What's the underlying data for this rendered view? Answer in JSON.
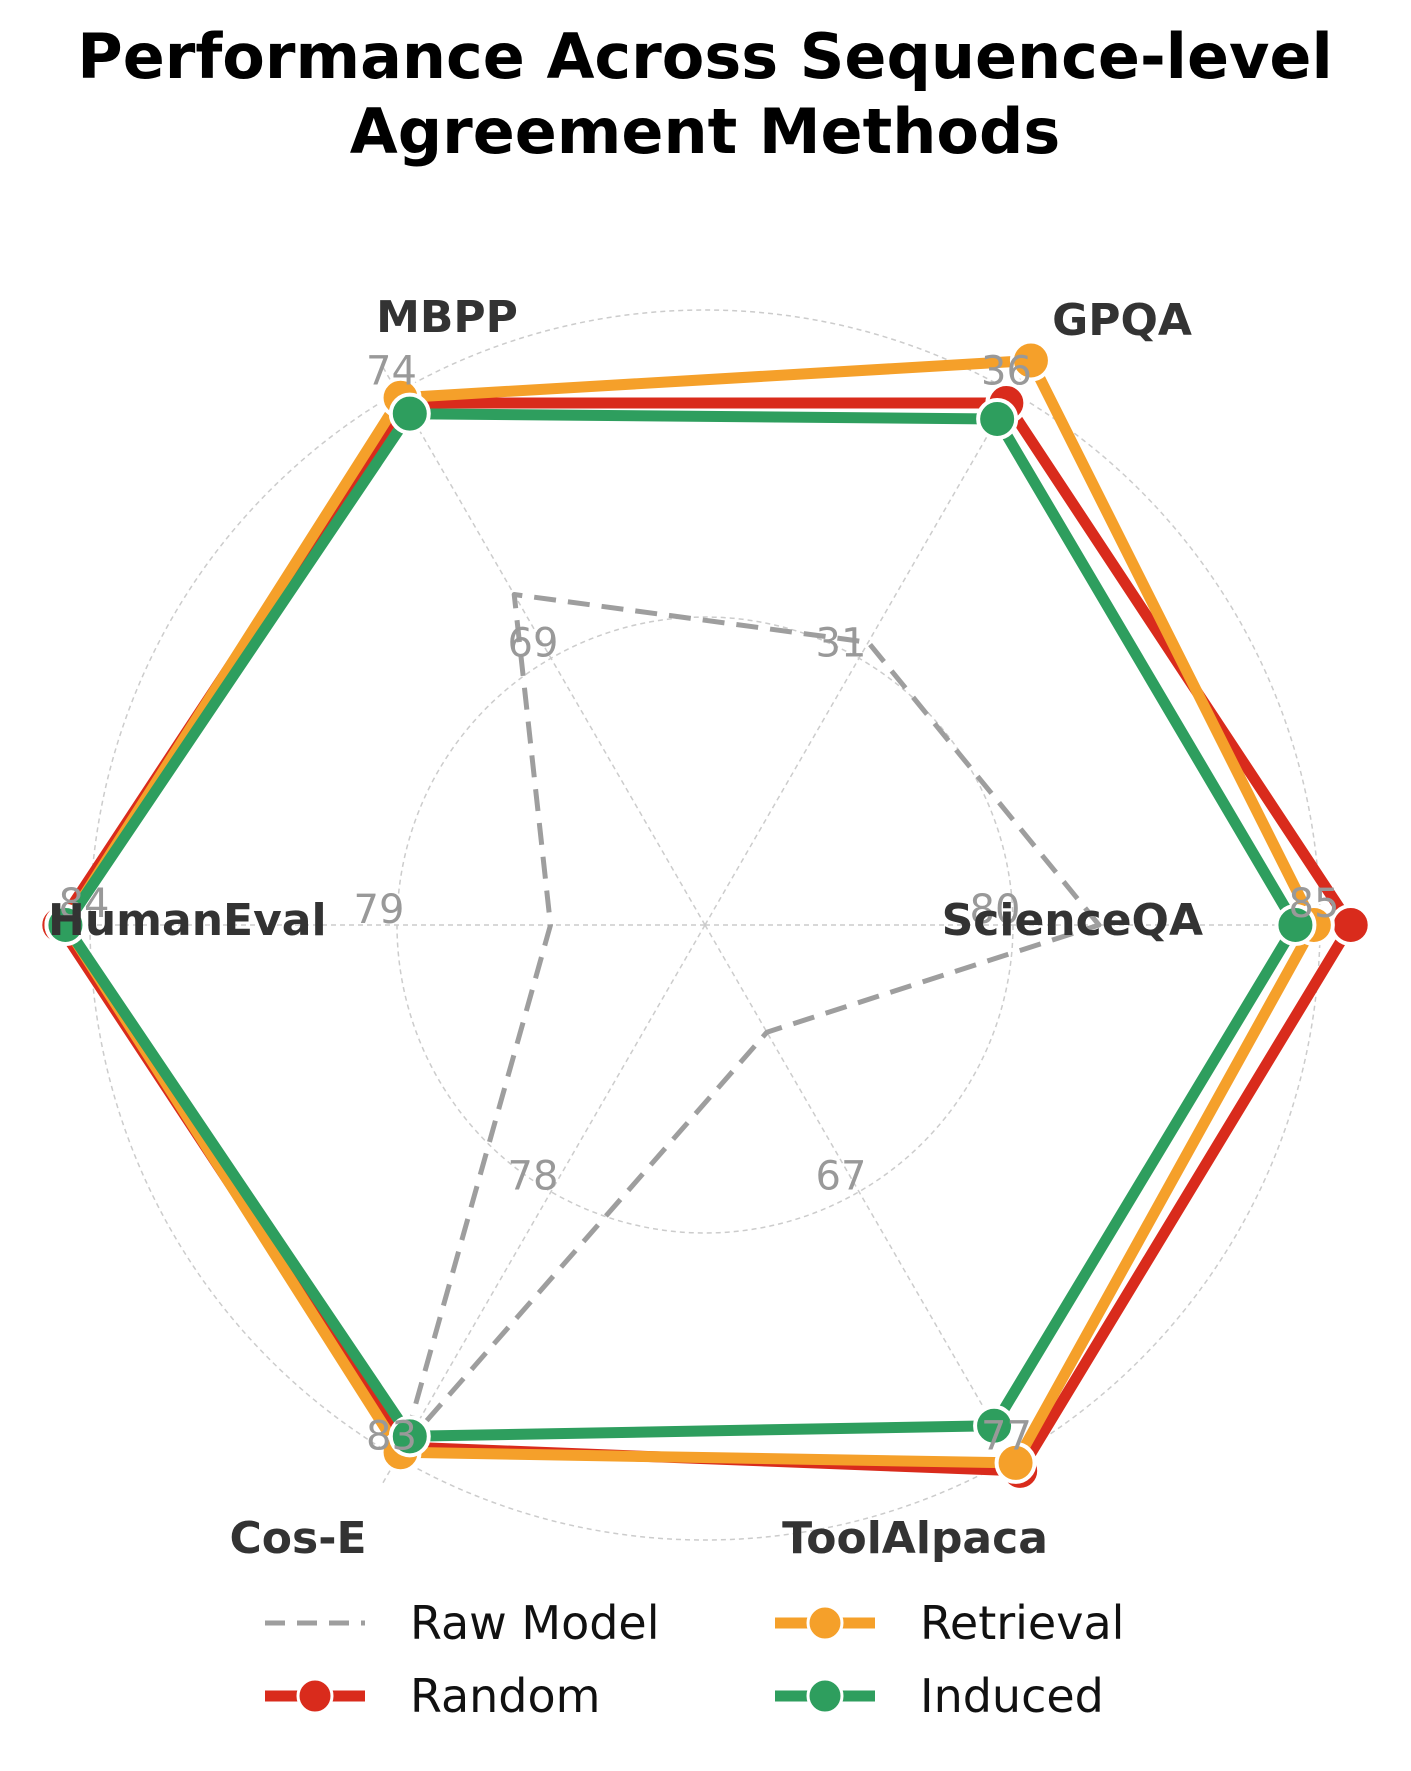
{
  "chart_data": {
    "type": "radar",
    "title_lines": [
      "Performance Across Sequence-level",
      "Agreement Methods"
    ],
    "axes": [
      {
        "name": "ScienceQA",
        "tick_labels": [
          "80",
          "85"
        ],
        "range": [
          75,
          85.5
        ]
      },
      {
        "name": "GPQA",
        "tick_labels": [
          "31",
          "36"
        ],
        "range": [
          26,
          36.6
        ]
      },
      {
        "name": "MBPP",
        "tick_labels": [
          "69",
          "74"
        ],
        "range": [
          64,
          74.5
        ]
      },
      {
        "name": "HumanEval",
        "tick_labels": [
          "79",
          "84"
        ],
        "range": [
          74,
          84.5
        ]
      },
      {
        "name": "Cos-E",
        "tick_labels": [
          "78",
          "83"
        ],
        "range": [
          73,
          83.5
        ]
      },
      {
        "name": "ToolAlpaca",
        "tick_labels": [
          "67",
          "77"
        ],
        "range": [
          57,
          78
        ]
      }
    ],
    "series": [
      {
        "name": "Raw Model",
        "style": "dashed",
        "color": "#9e9e9e",
        "values": [
          81.4,
          31.3,
          70.2,
          76.5,
          82.8,
          61.0
        ]
      },
      {
        "name": "Random",
        "style": "solid-marker",
        "color": "#d92b1c",
        "values": [
          85.5,
          35.8,
          73.8,
          84.5,
          82.8,
          77.5
        ]
      },
      {
        "name": "Retrieval",
        "style": "solid-marker",
        "color": "#f5a02a",
        "values": [
          84.9,
          36.6,
          73.9,
          84.4,
          82.9,
          77.2
        ]
      },
      {
        "name": "Induced",
        "style": "solid-marker",
        "color": "#2e9e5e",
        "values": [
          84.6,
          35.5,
          73.6,
          84.4,
          82.6,
          75.8
        ]
      }
    ],
    "legend_position": "bottom-center",
    "grid": true
  }
}
